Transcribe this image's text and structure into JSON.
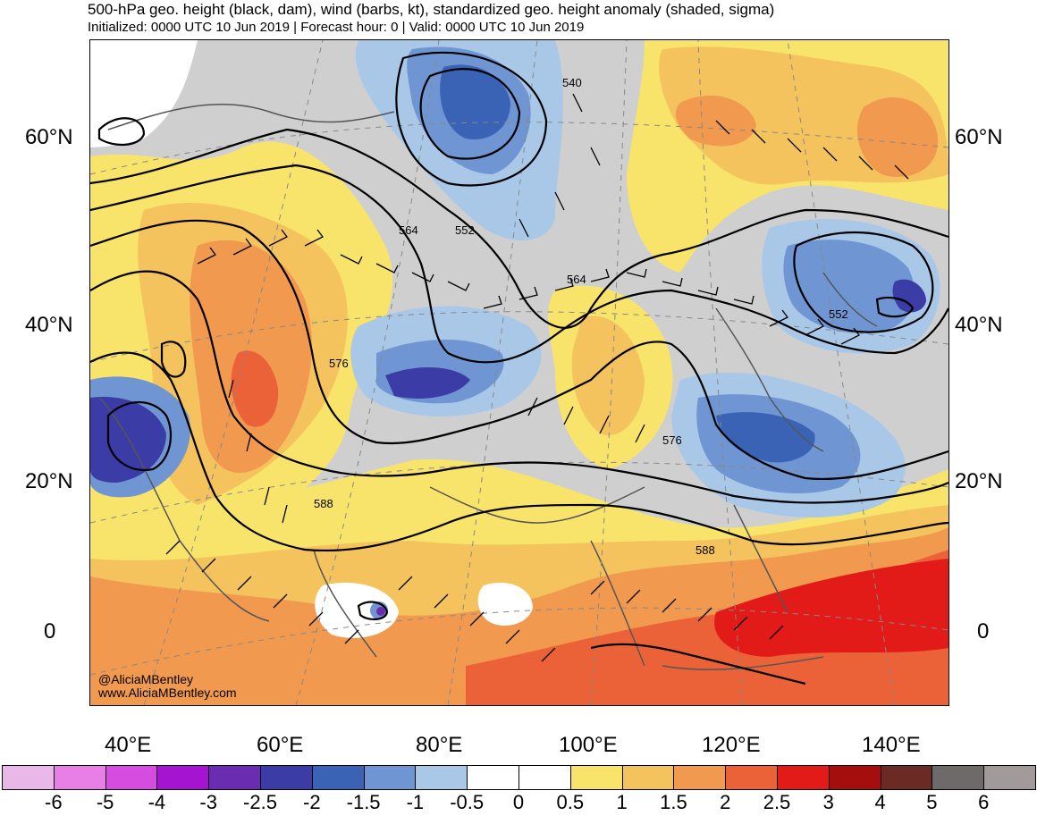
{
  "title": "500-hPa geo. height (black, dam), wind (barbs, kt), standardized geo. height anomaly (shaded, sigma)",
  "subtitle": "Initialized: 0000 UTC 10 Jun 2019 | Forecast hour: 0 | Valid: 0000 UTC 10 Jun 2019",
  "credit": {
    "handle": "@AliciaMBentley",
    "website": "www.AliciaMBentley.com"
  },
  "latitude_labels": [
    "60°N",
    "40°N",
    "20°N",
    "0"
  ],
  "longitude_labels": [
    "40°E",
    "60°E",
    "80°E",
    "100°E",
    "120°E",
    "140°E"
  ],
  "contour_labels": [
    "540",
    "552",
    "564",
    "564",
    "576",
    "576",
    "588",
    "588",
    "552"
  ],
  "colorbar": {
    "ticks": [
      "-6",
      "-5",
      "-4",
      "-3",
      "-2.5",
      "-2",
      "-1.5",
      "-1",
      "-0.5",
      "0",
      "0.5",
      "1",
      "1.5",
      "2",
      "2.5",
      "3",
      "4",
      "5",
      "6"
    ],
    "colors": [
      "#eab8e8",
      "#e87fe6",
      "#d64be0",
      "#a514d0",
      "#6a2cb0",
      "#3c3ca6",
      "#3a63b6",
      "#6f96d2",
      "#a9c8e8",
      "#ffffff",
      "#ffffff",
      "#f8e46a",
      "#f4c35e",
      "#f1994e",
      "#ec6238",
      "#e31b18",
      "#a60d0d",
      "#6b2a24",
      "#6e6a6a",
      "#a09a9a"
    ]
  },
  "colors": {
    "neutral": "#cfcfcf",
    "positive_light": "#f8e46a",
    "positive_mid": "#f1994e",
    "positive_strong": "#e31b18",
    "negative_light": "#a9c8e8",
    "negative_mid": "#3a63b6",
    "negative_strong": "#3c3ca6"
  }
}
